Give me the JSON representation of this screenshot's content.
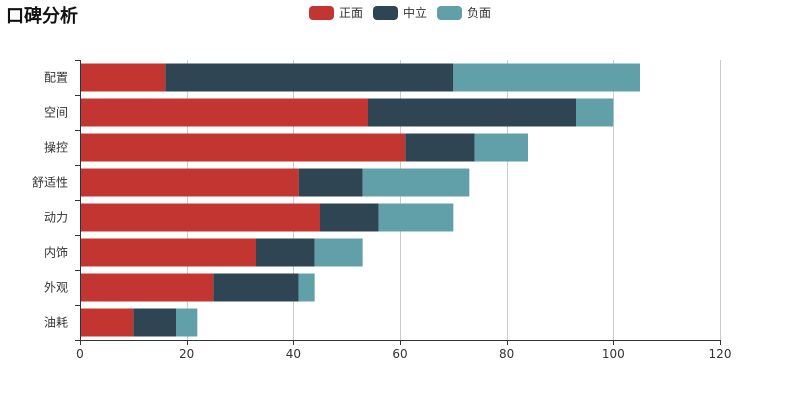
{
  "chart_data": {
    "type": "bar",
    "orientation": "horizontal",
    "stacked": true,
    "title": "口碑分析",
    "categories": [
      "配置",
      "空间",
      "操控",
      "舒适性",
      "动力",
      "内饰",
      "外观",
      "油耗"
    ],
    "series": [
      {
        "name": "正面",
        "color": "#c23531",
        "values": [
          16,
          54,
          61,
          41,
          45,
          33,
          25,
          10
        ]
      },
      {
        "name": "中立",
        "color": "#2f4554",
        "values": [
          54,
          39,
          13,
          12,
          11,
          11,
          16,
          8
        ]
      },
      {
        "name": "负面",
        "color": "#61a0a8",
        "values": [
          35,
          7,
          10,
          20,
          14,
          9,
          3,
          4
        ]
      }
    ],
    "xlim": [
      0,
      120
    ],
    "xticks": [
      0,
      20,
      40,
      60,
      80,
      100,
      120
    ],
    "xlabel": "",
    "ylabel": "",
    "grid": true,
    "legend_position": "top-center"
  }
}
